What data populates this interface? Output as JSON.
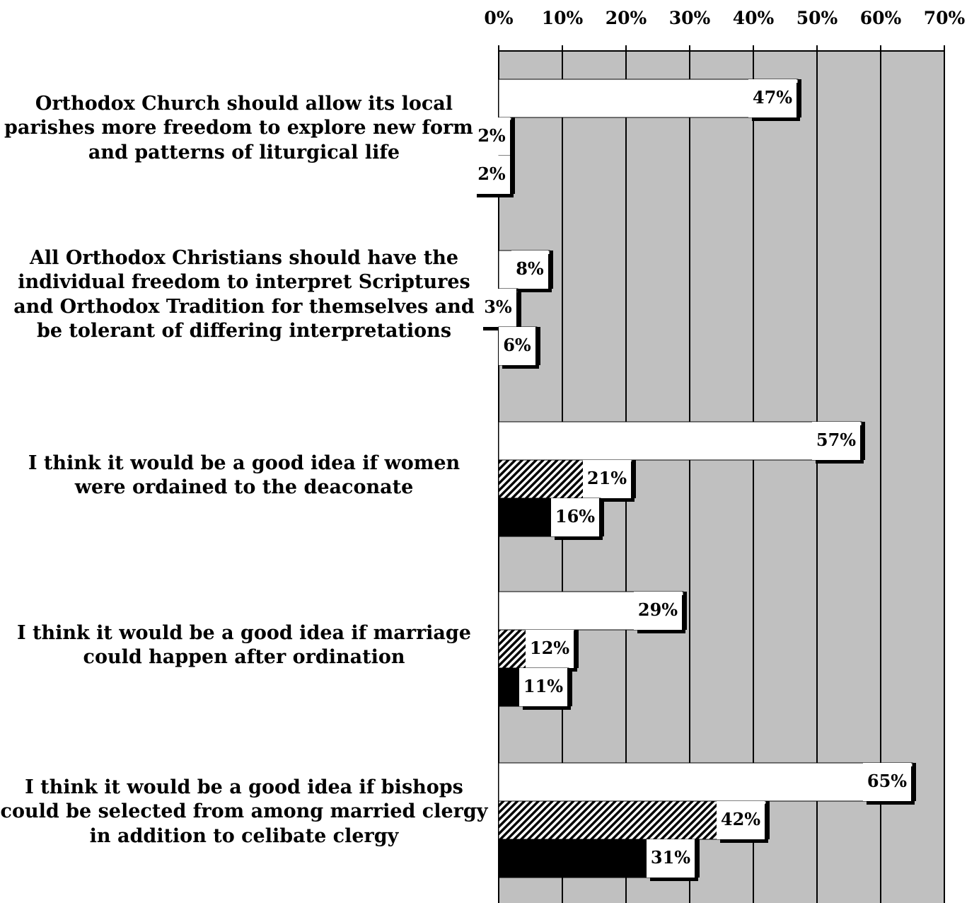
{
  "chart_data": {
    "type": "bar",
    "orientation": "horizontal",
    "x_ticks": [
      "0%",
      "10%",
      "20%",
      "30%",
      "40%",
      "50%",
      "60%",
      "70%"
    ],
    "xlim": [
      0,
      70
    ],
    "grid": true,
    "categories": [
      "Orthodox Church should allow its local parishes more freedom to explore new forms and patterns of liturgical life",
      "All Orthodox Christians should have the individual freedom to interpret Scriptures and Orthodox Tradition for themselves and be tolerant of differing interpretations",
      "I think it would be a good idea if women were ordained to the deaconate",
      "I think it would be a good idea if marriage could happen after ordination",
      "I think it would be a good idea if bishops could be selected from among married clergy in addition to celibate clergy"
    ],
    "series": [
      {
        "values": [
          47,
          8,
          57,
          29,
          65
        ],
        "labels": [
          "47%",
          "8%",
          "57%",
          "29%",
          "65%"
        ],
        "fill": "#ffffff"
      },
      {
        "values": [
          2,
          3,
          21,
          12,
          42
        ],
        "labels": [
          "2%",
          "3%",
          "21%",
          "12%",
          "42%"
        ],
        "fill": "hatch"
      },
      {
        "values": [
          2,
          6,
          16,
          11,
          31
        ],
        "labels": [
          "2%",
          "6%",
          "16%",
          "11%",
          "31%"
        ],
        "fill": "#000000"
      }
    ],
    "colors": {
      "plot_background": "#c0c0c0",
      "gridline": "#000000"
    }
  }
}
